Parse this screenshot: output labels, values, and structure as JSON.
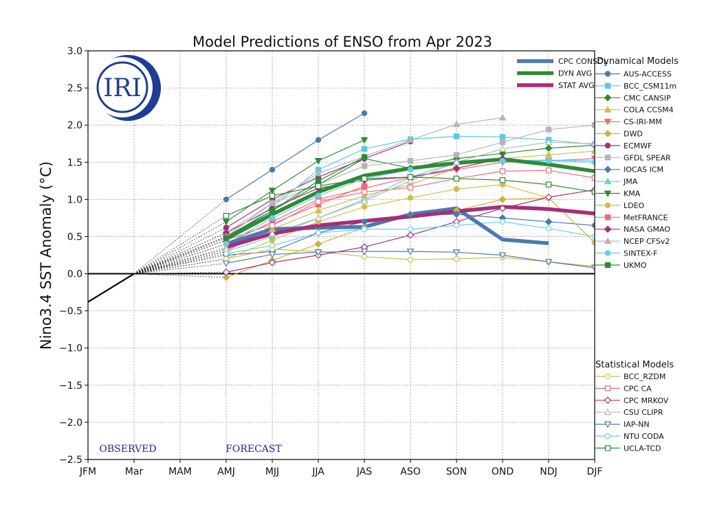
{
  "chart_data": {
    "type": "line",
    "title": "Model Predictions of ENSO from Apr 2023",
    "ylabel": "Nino3.4 SST Anomaly (°C)",
    "xlabel": "",
    "ylim": [
      -2.5,
      3.0
    ],
    "yticks": [
      -2.5,
      -2.0,
      -1.5,
      -1.0,
      -0.5,
      0.0,
      0.5,
      1.0,
      1.5,
      2.0,
      2.5,
      3.0
    ],
    "ytick_labels": [
      "−2.5",
      "−2.0",
      "−1.5",
      "−1.0",
      "−0.5",
      "0.0",
      "0.5",
      "1.0",
      "1.5",
      "2.0",
      "2.5",
      "3.0"
    ],
    "categories": [
      "JFM",
      "Mar",
      "MAM",
      "AMJ",
      "MJJ",
      "JJA",
      "JAS",
      "ASO",
      "SON",
      "OND",
      "NDJ",
      "DJF"
    ],
    "grid": true,
    "logo_text": "IRI",
    "observed_label": "OBSERVED",
    "forecast_label": "FORECAST",
    "observed": {
      "x": [
        0,
        1
      ],
      "values": [
        -0.38,
        0.0
      ]
    },
    "summary_series": [
      {
        "name": "CPC CONSOL",
        "color": "#4a7ab0",
        "values": [
          0.4,
          0.6,
          0.62,
          0.63,
          0.8,
          0.88,
          0.46,
          0.41
        ]
      },
      {
        "name": "DYN AVG",
        "color": "#2e8b35",
        "values": [
          0.47,
          0.8,
          1.1,
          1.32,
          1.42,
          1.49,
          1.54,
          1.47,
          1.38
        ]
      },
      {
        "name": "STAT AVG",
        "color": "#a82d78",
        "values": [
          0.36,
          0.54,
          0.65,
          0.71,
          0.77,
          0.84,
          0.9,
          0.87,
          0.81
        ]
      }
    ],
    "dynamical_title": "Dynamical Models",
    "dynamical_models": [
      {
        "name": "AUS-ACCESS",
        "color": "#4a7ab0",
        "marker": "circle",
        "filled": true,
        "values": [
          1.0,
          1.4,
          1.8,
          2.16
        ]
      },
      {
        "name": "BCC_CSM11m",
        "color": "#5bc8ea",
        "marker": "square",
        "filled": true,
        "values": [
          0.45,
          0.9,
          1.4,
          1.68,
          1.81,
          1.85,
          1.84,
          1.8,
          1.74
        ]
      },
      {
        "name": "CMC CANSIP",
        "color": "#2e8b35",
        "marker": "diamond",
        "filled": true,
        "values": [
          0.5,
          0.85,
          1.2,
          1.55,
          1.42,
          1.55,
          1.62,
          1.69,
          1.73
        ]
      },
      {
        "name": "COLA CCSM4",
        "color": "#d4bc4a",
        "marker": "triangle-up",
        "filled": true,
        "values": [
          0.35,
          0.6,
          0.85,
          1.05,
          1.2,
          1.42,
          1.55,
          1.6,
          1.65
        ]
      },
      {
        "name": "CS-IRI-MM",
        "color": "#ee6a7a",
        "marker": "triangle-down",
        "filled": true,
        "values": [
          0.4,
          0.7,
          1.0,
          1.15,
          1.3,
          1.4,
          1.5,
          1.52,
          1.55
        ]
      },
      {
        "name": "DWD",
        "color": "#c8b43c",
        "marker": "diamond",
        "filled": true,
        "values": [
          -0.05,
          0.18,
          0.4,
          0.62,
          0.8,
          0.85,
          1.0,
          1.02,
          0.42
        ]
      },
      {
        "name": "ECMWF",
        "color": "#a82d78",
        "marker": "circle",
        "filled": true,
        "values": [
          0.62,
          1.0,
          1.3,
          1.55,
          1.78
        ]
      },
      {
        "name": "GFDL SPEAR",
        "color": "#b5b5b5",
        "marker": "square",
        "filled": true,
        "values": [
          0.55,
          0.95,
          1.2,
          1.45,
          1.52,
          1.6,
          1.77,
          1.94,
          2.0
        ]
      },
      {
        "name": "IOCAS ICM",
        "color": "#4a7ab0",
        "marker": "diamond",
        "filled": true,
        "values": [
          0.25,
          0.3,
          0.55,
          0.7,
          0.79,
          0.8,
          0.75,
          0.7,
          0.65
        ]
      },
      {
        "name": "JMA",
        "color": "#62d0ea",
        "marker": "triangle-up",
        "filled": true,
        "values": [
          0.3,
          0.5,
          0.75,
          1.0,
          1.3,
          1.5,
          1.52,
          1.53,
          1.52
        ]
      },
      {
        "name": "KMA",
        "color": "#2e8b35",
        "marker": "triangle-down",
        "filled": true,
        "values": [
          0.7,
          1.12,
          1.52,
          1.8
        ]
      },
      {
        "name": "LDEO",
        "color": "#d4bc4a",
        "marker": "circle",
        "filled": true,
        "values": [
          0.2,
          0.45,
          0.7,
          0.9,
          1.02,
          1.14,
          1.2,
          1.02,
          0.42
        ]
      },
      {
        "name": "MetFRANCE",
        "color": "#ee6a7a",
        "marker": "square",
        "filled": true,
        "values": [
          0.45,
          0.67,
          0.93,
          1.18
        ]
      },
      {
        "name": "NASA GMAO",
        "color": "#a82d78",
        "marker": "diamond",
        "filled": true,
        "values": [
          0.55,
          0.88,
          1.15,
          1.26,
          1.3,
          1.42,
          1.55
        ]
      },
      {
        "name": "NCEP CFSv2",
        "color": "#b5b5b5",
        "marker": "triangle-up",
        "filled": true,
        "values": [
          0.5,
          0.95,
          1.35,
          1.58,
          1.8,
          2.01,
          2.1
        ]
      },
      {
        "name": "SINTEX-F",
        "color": "#62d0ea",
        "marker": "circle",
        "filled": true,
        "values": [
          0.4,
          0.75,
          1.05,
          1.28,
          1.4,
          1.5,
          1.52,
          1.52,
          1.5
        ]
      },
      {
        "name": "UKMO",
        "color": "#2e8b35",
        "marker": "square",
        "filled": true,
        "values": [
          0.48,
          0.85,
          1.25,
          1.57
        ]
      }
    ],
    "statistical_title": "Statistical Models",
    "statistical_models": [
      {
        "name": "BCC_RZDM",
        "color": "#d4bc4a",
        "marker": "circle",
        "filled": false,
        "values": [
          0.2,
          0.33,
          0.3,
          0.23,
          0.19,
          0.2,
          0.22,
          0.16,
          0.1
        ]
      },
      {
        "name": "CPC CA",
        "color": "#ee6a7a",
        "marker": "square",
        "filled": false,
        "values": [
          0.3,
          0.65,
          0.97,
          1.1,
          1.16,
          1.28,
          1.38,
          1.39,
          1.29
        ]
      },
      {
        "name": "CPC MRKOV",
        "color": "#a82d78",
        "marker": "diamond",
        "filled": false,
        "values": [
          0.02,
          0.15,
          0.25,
          0.36,
          0.52,
          0.7,
          0.88,
          1.03,
          1.13
        ]
      },
      {
        "name": "CSU CLIPR",
        "color": "#b5b5b5",
        "marker": "triangle-up",
        "filled": false,
        "values": [
          0.33,
          0.54,
          0.75,
          0.98,
          1.25,
          1.5,
          1.68,
          1.77,
          1.75
        ]
      },
      {
        "name": "IAP-NN",
        "color": "#4a7ab0",
        "marker": "triangle-down",
        "filled": false,
        "values": [
          0.14,
          0.26,
          0.29,
          0.3,
          0.3,
          0.29,
          0.25,
          0.16,
          0.08
        ]
      },
      {
        "name": "NTU CODA",
        "color": "#62d0ea",
        "marker": "circle",
        "filled": false,
        "values": [
          0.27,
          0.38,
          0.55,
          0.6,
          0.6,
          0.65,
          0.7,
          0.61,
          0.5
        ]
      },
      {
        "name": "UCLA-TCD",
        "color": "#2e8b35",
        "marker": "square",
        "filled": false,
        "values": [
          0.78,
          1.05,
          1.18,
          1.28,
          1.3,
          1.28,
          1.26,
          1.2,
          1.1
        ]
      }
    ]
  }
}
